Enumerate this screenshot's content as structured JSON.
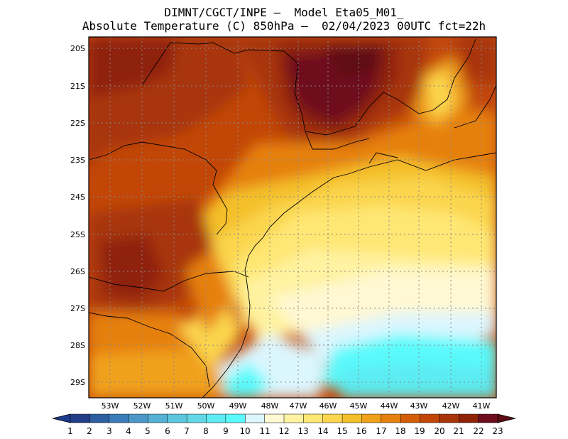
{
  "title": {
    "line1": "DIMNT/CGCT/INPE –  Model Eta05_M01_",
    "line2": "Absolute Temperature (C) 850hPa –  02/04/2023 00UTC fct=22h"
  },
  "map": {
    "lat_labels": [
      "20S",
      "21S",
      "22S",
      "23S",
      "24S",
      "25S",
      "26S",
      "27S",
      "28S",
      "29S"
    ],
    "lon_labels": [
      "53W",
      "52W",
      "51W",
      "50W",
      "49W",
      "48W",
      "47W",
      "46W",
      "45W",
      "44W",
      "43W",
      "42W",
      "41W"
    ],
    "lat_range": [
      -19.7,
      -29.4
    ],
    "lon_range": [
      -53.6,
      -40.6
    ]
  },
  "colorbar": {
    "labels": [
      "1",
      "2",
      "3",
      "4",
      "5",
      "6",
      "7",
      "8",
      "9",
      "10",
      "11",
      "12",
      "13",
      "14",
      "15",
      "16",
      "17",
      "18",
      "19",
      "20",
      "21",
      "22",
      "23"
    ],
    "colors": [
      "#233e86",
      "#2c5ea0",
      "#3a7cb8",
      "#4b98c8",
      "#54b0d4",
      "#5cc6dc",
      "#62d8e6",
      "#5cecf2",
      "#5afafc",
      "#dcf6fe",
      "#fff8d2",
      "#fff2a0",
      "#ffe774",
      "#fbd64e",
      "#f4c029",
      "#f0a11a",
      "#e6800e",
      "#d45e08",
      "#c24707",
      "#a83508",
      "#8f2308",
      "#6e0d1e"
    ],
    "under_color": "#1d3b8c",
    "over_color": "#5e0b16"
  }
}
